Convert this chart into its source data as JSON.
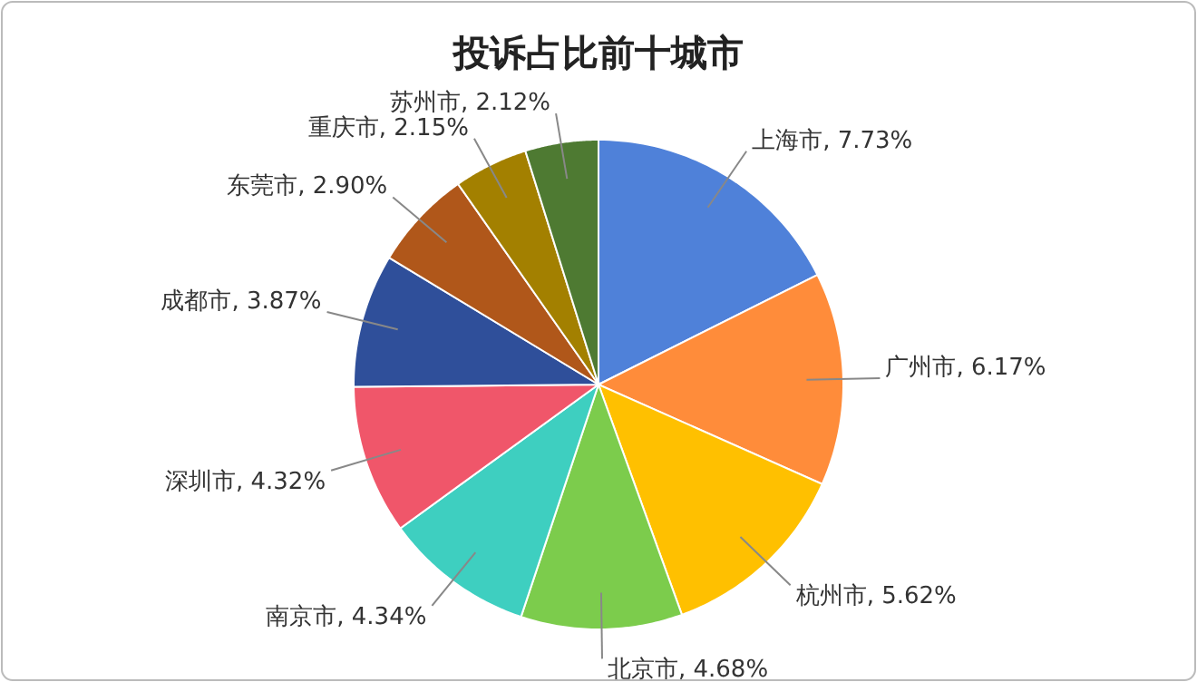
{
  "chart_data": {
    "type": "pie",
    "title": "投诉占比前十城市",
    "categories": [
      "上海市",
      "广州市",
      "杭州市",
      "北京市",
      "南京市",
      "深圳市",
      "成都市",
      "东莞市",
      "重庆市",
      "苏州市"
    ],
    "values": [
      7.73,
      6.17,
      5.62,
      4.68,
      4.34,
      4.32,
      3.87,
      2.9,
      2.15,
      2.12
    ],
    "value_labels": [
      "7.73%",
      "6.17%",
      "5.62%",
      "4.68%",
      "4.34%",
      "4.32%",
      "3.87%",
      "2.90%",
      "2.15%",
      "2.12%"
    ],
    "colors": [
      "#4f81d9",
      "#ff8c3a",
      "#ffc000",
      "#7ccc4c",
      "#3ecfc0",
      "#f0566a",
      "#2f4f9a",
      "#b0571a",
      "#a38000",
      "#4e7a32"
    ]
  }
}
